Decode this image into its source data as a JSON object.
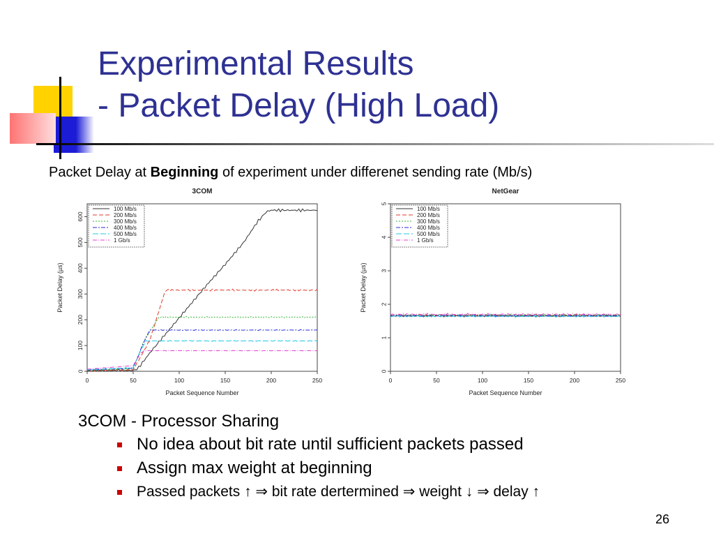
{
  "slide": {
    "title_line1": "Experimental Results",
    "title_line2": "- Packet Delay (High Load)",
    "subtitle_pre": "Packet Delay at ",
    "subtitle_bold": "Beginning",
    "subtitle_post": " of experiment under differenet sending rate (Mb/s)",
    "page_number": "26",
    "title_color": "#2e3192"
  },
  "bullets": {
    "main": "3COM - Processor Sharing",
    "sub": [
      "No idea about bit rate until sufficient packets passed",
      "Assign max weight at beginning",
      "Passed packets ↑ ⇒ bit rate dertermined ⇒ weight ↓ ⇒ delay ↑"
    ]
  },
  "chart_data": [
    {
      "type": "line",
      "title": "3COM",
      "xlabel": "Packet Sequence Number",
      "ylabel": "Packet Delay (µs)",
      "xlim": [
        0,
        250
      ],
      "ylim": [
        0,
        650
      ],
      "xticks": [
        0,
        50,
        100,
        150,
        200,
        250
      ],
      "yticks": [
        0,
        100,
        200,
        300,
        400,
        500,
        600
      ],
      "legend": "top-left",
      "series": [
        {
          "name": "100 Mb/s",
          "color": "#333333",
          "dash": "none",
          "points": [
            [
              0,
              2
            ],
            [
              50,
              3
            ],
            [
              55,
              10
            ],
            [
              70,
              80
            ],
            [
              90,
              165
            ],
            [
              110,
              250
            ],
            [
              130,
              335
            ],
            [
              150,
              415
            ],
            [
              170,
              500
            ],
            [
              185,
              580
            ],
            [
              195,
              620
            ],
            [
              200,
              625
            ],
            [
              250,
              625
            ]
          ],
          "noise": 6
        },
        {
          "name": "200 Mb/s",
          "color": "#e0392b",
          "dash": "6,3",
          "points": [
            [
              0,
              3
            ],
            [
              50,
              5
            ],
            [
              68,
              120
            ],
            [
              85,
              315
            ],
            [
              250,
              315
            ]
          ],
          "noise": 4
        },
        {
          "name": "300 Mb/s",
          "color": "#2fb52f",
          "dash": "2,2",
          "points": [
            [
              0,
              4
            ],
            [
              50,
              10
            ],
            [
              62,
              120
            ],
            [
              78,
              210
            ],
            [
              250,
              210
            ]
          ],
          "noise": 3
        },
        {
          "name": "400 Mb/s",
          "color": "#2a2ad8",
          "dash": "6,2,2,2",
          "points": [
            [
              0,
              5
            ],
            [
              50,
              12
            ],
            [
              60,
              100
            ],
            [
              68,
              160
            ],
            [
              250,
              160
            ]
          ],
          "noise": 2
        },
        {
          "name": "500 Mb/s",
          "color": "#22c8e6",
          "dash": "8,3",
          "points": [
            [
              0,
              6
            ],
            [
              50,
              14
            ],
            [
              58,
              80
            ],
            [
              64,
              118
            ],
            [
              250,
              118
            ]
          ],
          "noise": 2
        },
        {
          "name": "1 Gb/s",
          "color": "#e040d0",
          "dash": "6,2,1,2",
          "points": [
            [
              0,
              8
            ],
            [
              50,
              22
            ],
            [
              58,
              70
            ],
            [
              62,
              80
            ],
            [
              250,
              80
            ]
          ],
          "noise": 1
        }
      ]
    },
    {
      "type": "line",
      "title": "NetGear",
      "xlabel": "Packet Sequence Number",
      "ylabel": "Packet Delay (µs)",
      "xlim": [
        0,
        250
      ],
      "ylim": [
        0,
        5
      ],
      "xticks": [
        0,
        50,
        100,
        150,
        200,
        250
      ],
      "yticks": [
        0,
        1,
        2,
        3,
        4,
        5
      ],
      "legend": "top-left",
      "series": [
        {
          "name": "100 Mb/s",
          "color": "#333333",
          "dash": "none",
          "points": [
            [
              0,
              1.65
            ],
            [
              250,
              1.65
            ]
          ],
          "noise": 0.03
        },
        {
          "name": "200 Mb/s",
          "color": "#e0392b",
          "dash": "6,3",
          "points": [
            [
              0,
              1.67
            ],
            [
              250,
              1.67
            ]
          ],
          "noise": 0.03
        },
        {
          "name": "300 Mb/s",
          "color": "#2fb52f",
          "dash": "2,2",
          "points": [
            [
              0,
              1.68
            ],
            [
              250,
              1.68
            ]
          ],
          "noise": 0.03
        },
        {
          "name": "400 Mb/s",
          "color": "#2a2ad8",
          "dash": "6,2,2,2",
          "points": [
            [
              0,
              1.66
            ],
            [
              250,
              1.66
            ]
          ],
          "noise": 0.03
        },
        {
          "name": "500 Mb/s",
          "color": "#22c8e6",
          "dash": "8,3",
          "points": [
            [
              0,
              1.64
            ],
            [
              250,
              1.64
            ]
          ],
          "noise": 0.03
        },
        {
          "name": "1 Gb/s",
          "color": "#e040d0",
          "dash": "6,2,1,2",
          "points": [
            [
              0,
              1.7
            ],
            [
              250,
              1.7
            ]
          ],
          "noise": 0.03
        }
      ]
    }
  ]
}
